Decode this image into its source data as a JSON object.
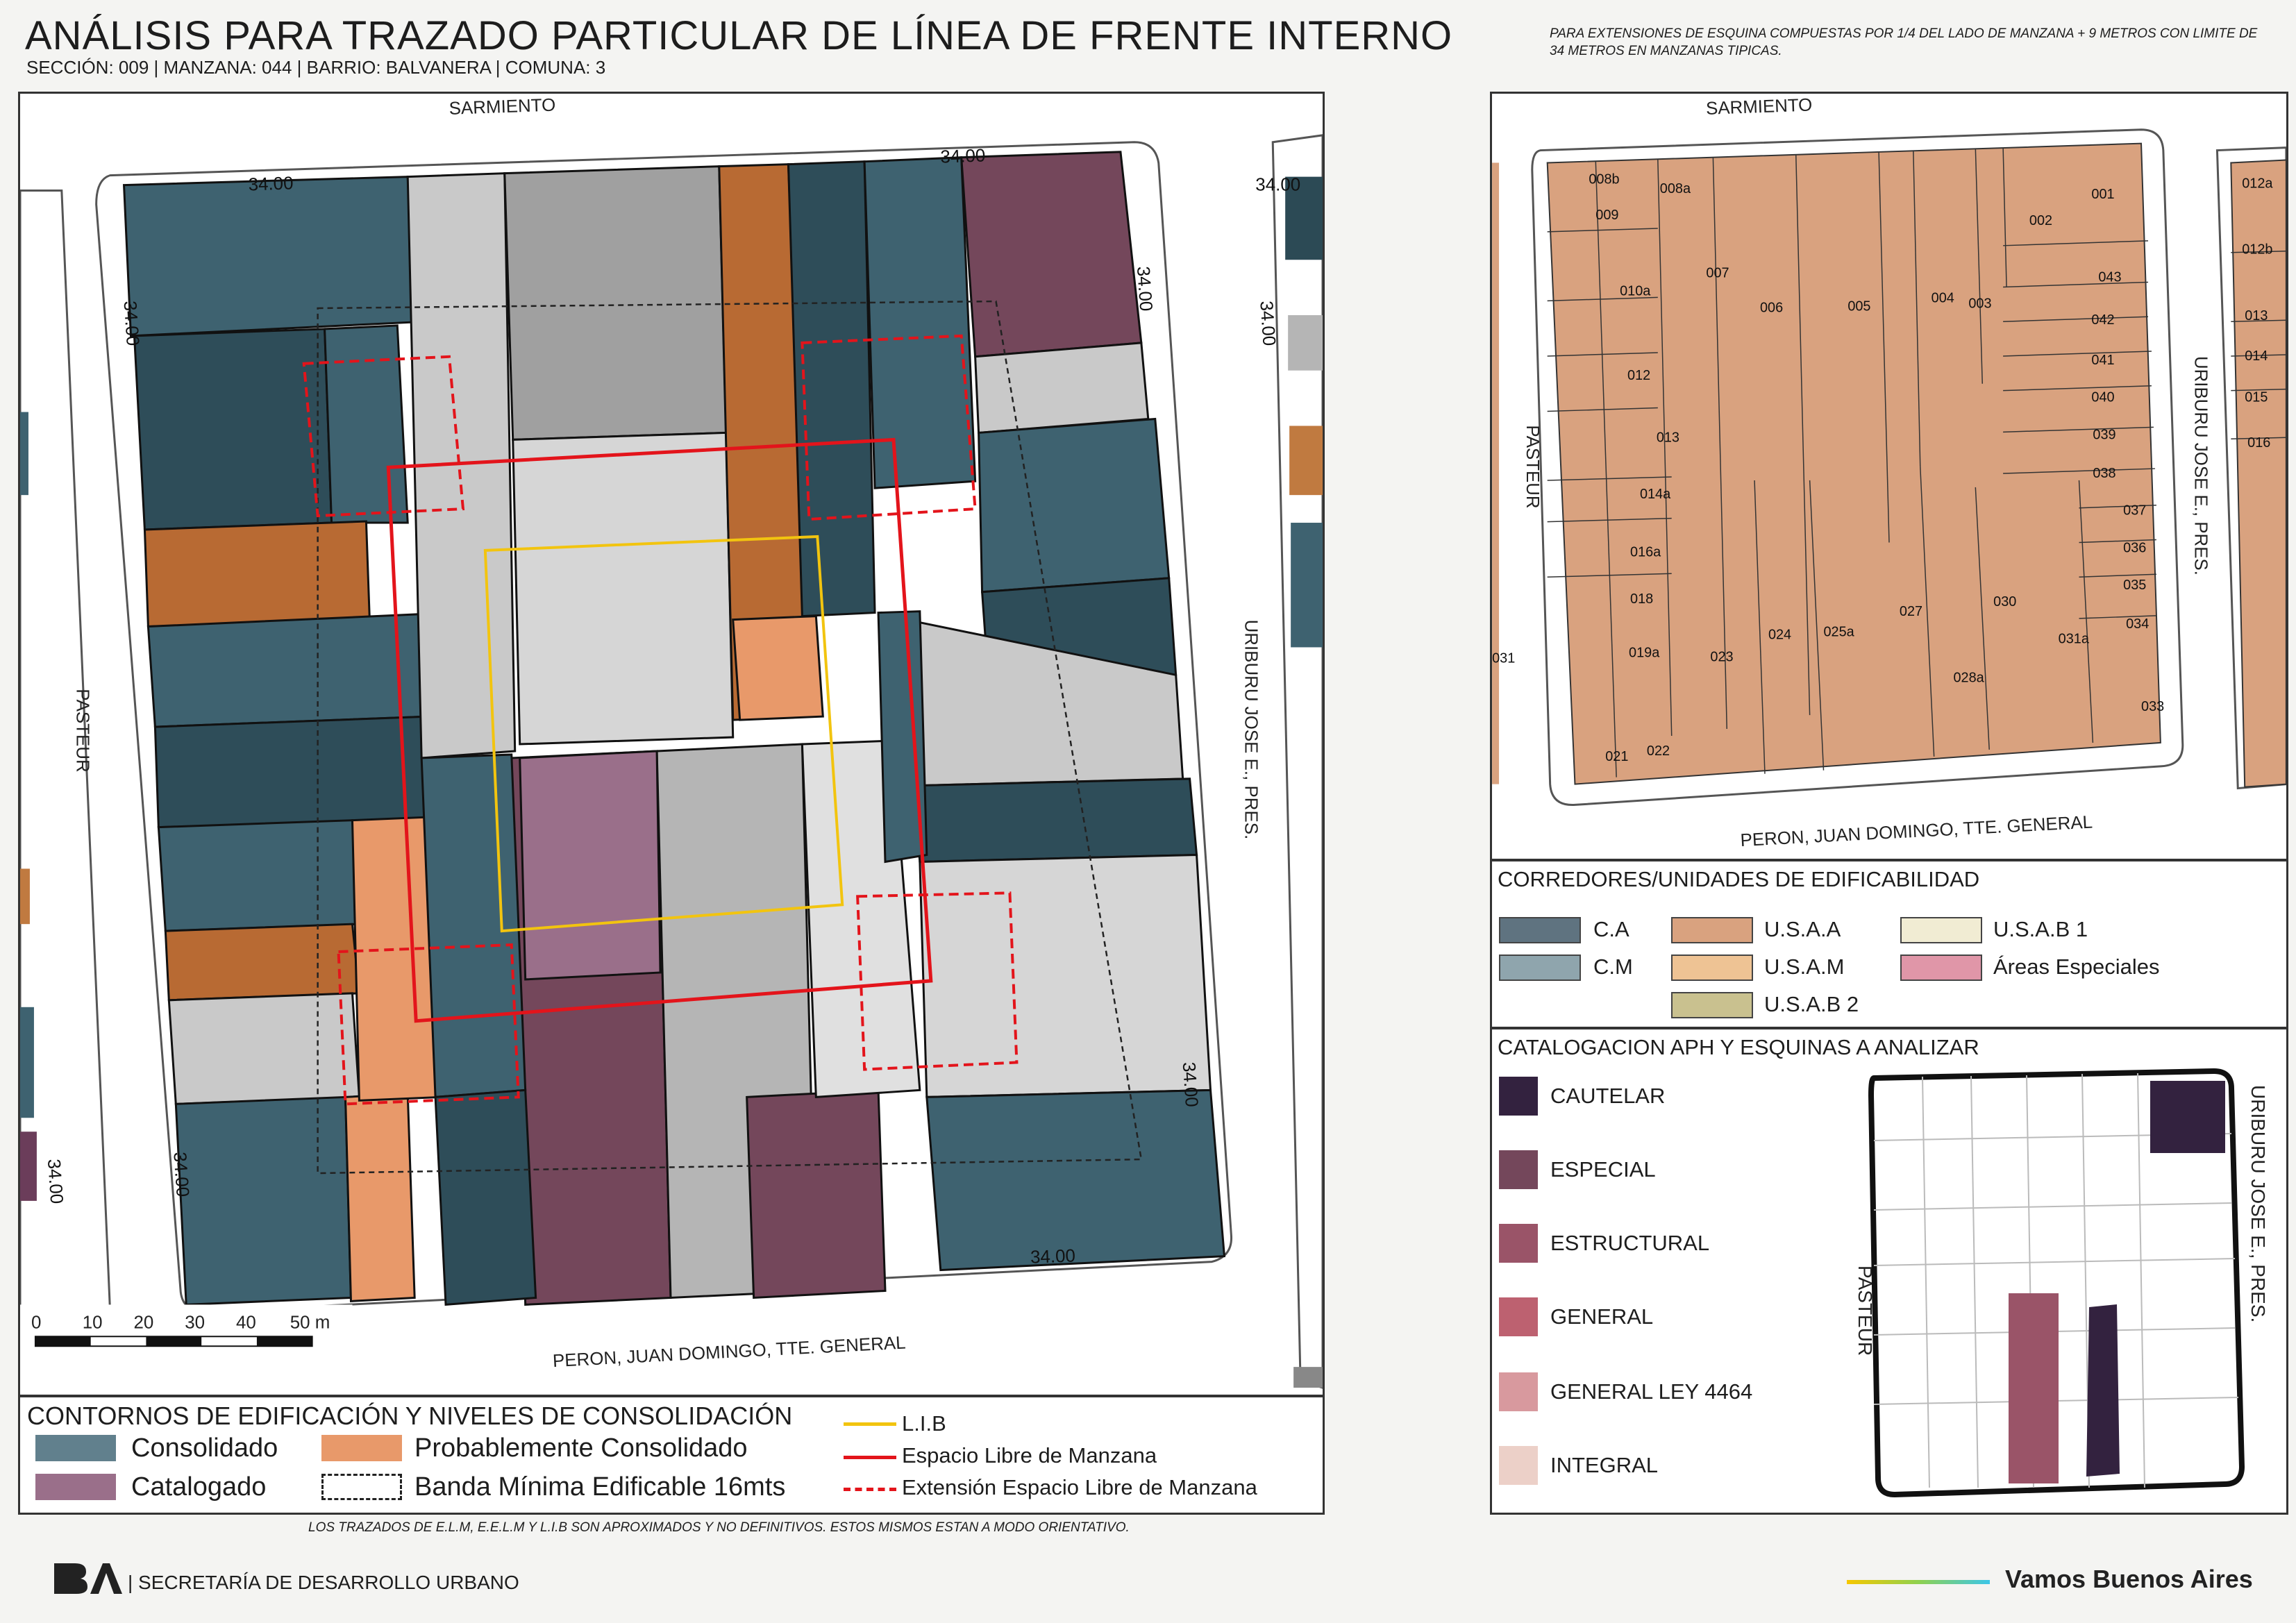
{
  "header": {
    "title": "ANÁLISIS PARA TRAZADO PARTICULAR DE LÍNEA DE FRENTE INTERNO",
    "subtitle": "SECCIÓN: 009 |  MANZANA: 044 | BARRIO: BALVANERA | COMUNA: 3",
    "note": "PARA EXTENSIONES DE ESQUINA COMPUESTAS POR 1/4 DEL LADO DE MANZANA + 9 METROS CON LIMITE DE 34 METROS EN MANZANAS TIPICAS."
  },
  "main_map": {
    "streets": {
      "north": "SARMIENTO",
      "south": "PERON, JUAN DOMINGO, TTE. GENERAL",
      "west": "PASTEUR",
      "east": "URIBURU JOSE E., PRES."
    },
    "dimension_label": "34.00",
    "scale_bar": {
      "ticks": [
        "0",
        "10",
        "20",
        "30",
        "40",
        "50 m"
      ]
    }
  },
  "right_map": {
    "streets": {
      "north": "SARMIENTO",
      "south": "PERON, JUAN DOMINGO, TTE. GENERAL",
      "west": "PASTEUR",
      "east": "URIBURU JOSE E., PRES."
    },
    "parcels": [
      "008b",
      "008a",
      "009",
      "010a",
      "007",
      "006",
      "005",
      "004",
      "003",
      "002",
      "001",
      "043",
      "042",
      "041",
      "040",
      "039",
      "038",
      "037",
      "036",
      "035",
      "034",
      "033",
      "031a",
      "030",
      "028a",
      "027",
      "025a",
      "024",
      "023",
      "022",
      "021",
      "019a",
      "018",
      "016a",
      "014a",
      "013",
      "012",
      "012a",
      "012b",
      "013",
      "014",
      "015",
      "016",
      "031"
    ]
  },
  "legend_corredores": {
    "title": "CORREDORES/UNIDADES DE EDIFICABILIDAD",
    "items": [
      {
        "label": "C.A",
        "color": "#5f7380"
      },
      {
        "label": "C.M",
        "color": "#8fa5ad"
      },
      {
        "label": "U.S.A.A",
        "color": "#d9a27f"
      },
      {
        "label": "U.S.A.M",
        "color": "#eec394"
      },
      {
        "label": "U.S.A.B 2",
        "color": "#c9c18f"
      },
      {
        "label": "U.S.A.B 1",
        "color": "#f1ecd3"
      },
      {
        "label": "Áreas Especiales",
        "color": "#e096a8"
      }
    ]
  },
  "legend_catalogacion": {
    "title": "CATALOGACION APH Y ESQUINAS A ANALIZAR",
    "items": [
      {
        "label": "CAUTELAR",
        "color": "#33223f"
      },
      {
        "label": "ESPECIAL",
        "color": "#74475b"
      },
      {
        "label": "ESTRUCTURAL",
        "color": "#9a5468"
      },
      {
        "label": "GENERAL",
        "color": "#bd6170"
      },
      {
        "label": "GENERAL LEY 4464",
        "color": "#d8999e"
      },
      {
        "label": "INTEGRAL",
        "color": "#ecd0c8"
      }
    ],
    "inset_streets": {
      "west": "PASTEUR",
      "east": "URIBURU JOSE E., PRES."
    }
  },
  "legend_contornos": {
    "title": "CONTORNOS DE EDIFICACIÓN Y NIVELES DE CONSOLIDACIÓN",
    "items": [
      {
        "label": "Consolidado",
        "color": "#61808d"
      },
      {
        "label": "Probablemente Consolidado",
        "color": "#e8996a"
      },
      {
        "label": "Catalogado",
        "color": "#9a6f8a"
      },
      {
        "label": "Banda Mínima Edificable 16mts",
        "color": "#ffffff"
      }
    ],
    "lines": [
      {
        "label": "L.I.B",
        "color": "#f2c40f"
      },
      {
        "label": "Espacio Libre de Manzana",
        "color": "#e3141b"
      },
      {
        "label": "Extensión Espacio Libre de Manzana",
        "color": "#e3141b"
      }
    ]
  },
  "footer": {
    "note": "LOS TRAZADOS DE E.L.M, E.E.L.M Y L.I.B SON APROXIMADOS Y NO DEFINITIVOS. ESTOS MISMOS ESTAN A MODO ORIENTATIVO.",
    "org": "| SECRETARÍA DE DESARROLLO URBANO",
    "slogan": "Vamos Buenos Aires"
  }
}
